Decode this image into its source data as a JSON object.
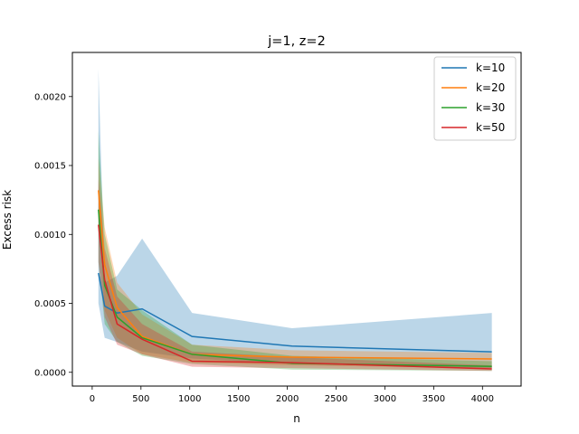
{
  "chart_data": {
    "type": "line",
    "title": "j=1, z=2",
    "xlabel": "n",
    "ylabel": "Excess risk",
    "xlim": [
      -203,
      4396
    ],
    "ylim": [
      -0.0001,
      0.00232
    ],
    "xticks": [
      0,
      500,
      1000,
      1500,
      2000,
      2500,
      3000,
      3500,
      4000
    ],
    "xtick_labels": [
      "0",
      "500",
      "1000",
      "1500",
      "2000",
      "2500",
      "3000",
      "3500",
      "4000"
    ],
    "yticks": [
      0.0,
      0.0005,
      0.001,
      0.0015,
      0.002
    ],
    "ytick_labels": [
      "0.0000",
      "0.0005",
      "0.0010",
      "0.0015",
      "0.0020"
    ],
    "grid": false,
    "legend_position": "top-right",
    "x": [
      64,
      128,
      256,
      512,
      1024,
      2048,
      4096
    ],
    "series": [
      {
        "name": "k=10",
        "color": "#1f77b4",
        "values": [
          0.00072,
          0.00048,
          0.00043,
          0.00046,
          0.00026,
          0.00019,
          0.000148
        ],
        "lower": [
          0.0005,
          0.00025,
          0.00022,
          0.00015,
          0.0001,
          6e-05,
          3e-05
        ],
        "upper": [
          0.0022,
          0.00065,
          0.0007,
          0.00097,
          0.00043,
          0.00032,
          0.00043
        ]
      },
      {
        "name": "k=20",
        "color": "#ff7f0e",
        "values": [
          0.00132,
          0.00078,
          0.00047,
          0.00026,
          0.00013,
          0.00011,
          9.7e-05
        ],
        "lower": [
          0.0011,
          0.00045,
          0.00025,
          0.00013,
          7e-05,
          5e-05,
          3e-05
        ],
        "upper": [
          0.00155,
          0.00105,
          0.00065,
          0.00042,
          0.0002,
          0.00016,
          0.00014
        ]
      },
      {
        "name": "k=30",
        "color": "#2ca02c",
        "values": [
          0.00118,
          0.00063,
          0.0004,
          0.00025,
          0.00013,
          6.5e-05,
          4.3e-05
        ],
        "lower": [
          0.0008,
          0.00035,
          0.00022,
          0.00012,
          6e-05,
          2e-05,
          1e-05
        ],
        "upper": [
          0.00175,
          0.001,
          0.0006,
          0.00045,
          0.0002,
          0.00012,
          8e-05
        ]
      },
      {
        "name": "k=50",
        "color": "#d62728",
        "values": [
          0.00107,
          0.00067,
          0.00035,
          0.00024,
          8e-05,
          7e-05,
          2.5e-05
        ],
        "lower": [
          0.0008,
          0.0004,
          0.0002,
          0.00013,
          4e-05,
          3e-05,
          1e-05
        ],
        "upper": [
          0.0014,
          0.0009,
          0.00055,
          0.00035,
          0.00015,
          0.00011,
          5e-05
        ]
      }
    ]
  }
}
